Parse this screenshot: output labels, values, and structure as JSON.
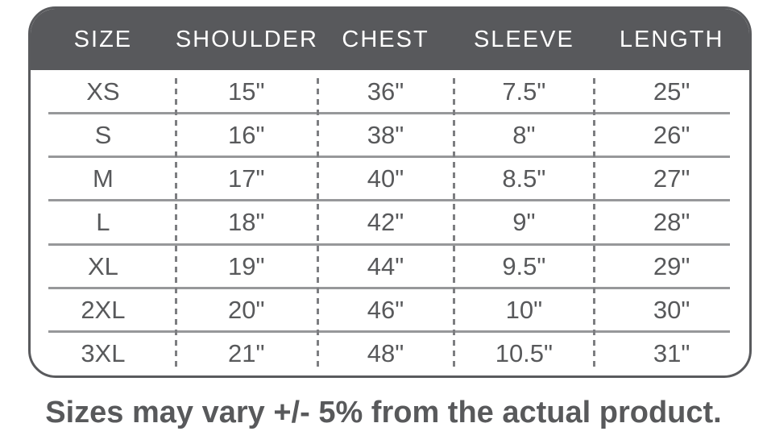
{
  "chart_data": {
    "type": "table",
    "columns": [
      "SIZE",
      "SHOULDER",
      "CHEST",
      "SLEEVE",
      "LENGTH"
    ],
    "rows": [
      [
        "XS",
        "15\"",
        "36\"",
        "7.5\"",
        "25\""
      ],
      [
        "S",
        "16\"",
        "38\"",
        "8\"",
        "26\""
      ],
      [
        "M",
        "17\"",
        "40\"",
        "8.5\"",
        "27\""
      ],
      [
        "L",
        "18\"",
        "42\"",
        "9\"",
        "28\""
      ],
      [
        "XL",
        "19\"",
        "44\"",
        "9.5\"",
        "29\""
      ],
      [
        "2XL",
        "20\"",
        "46\"",
        "10\"",
        "30\""
      ],
      [
        "3XL",
        "21\"",
        "48\"",
        "10.5\"",
        "31\""
      ]
    ]
  },
  "footer": {
    "note": "Sizes may vary +/- 5% from the actual product."
  },
  "colors": {
    "header_bg": "#58595c",
    "header_text": "#ffffff",
    "body_text": "#58595b",
    "row_line": "#97989a",
    "column_dash": "#7d7e81",
    "table_border": "#595a5d",
    "page_bg": "#ffffff"
  }
}
